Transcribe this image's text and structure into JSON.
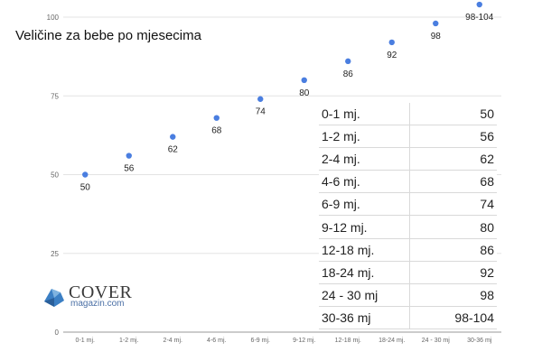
{
  "chart_data": {
    "type": "scatter",
    "title": "Veličine za bebe po mjesecima",
    "categories": [
      "0-1 mj.",
      "1-2 mj.",
      "2-4 mj.",
      "4-6 mj.",
      "6-9 mj.",
      "9-12 mj.",
      "12-18 mj.",
      "18-24 mj.",
      "24 - 30 mj",
      "30-36 mj"
    ],
    "values": [
      50,
      56,
      62,
      68,
      74,
      80,
      86,
      92,
      98,
      104
    ],
    "data_labels": [
      "50",
      "56",
      "62",
      "68",
      "74",
      "80",
      "86",
      "92",
      "98",
      "98-104"
    ],
    "ylim": [
      0,
      100
    ],
    "yticks": [
      0,
      25,
      50,
      75,
      100
    ],
    "xlabel": "",
    "ylabel": "",
    "grid": true,
    "point_color": "#4a7ee0"
  },
  "table": {
    "rows": [
      {
        "label": "0-1 mj.",
        "value": "50"
      },
      {
        "label": "1-2 mj.",
        "value": "56"
      },
      {
        "label": "2-4 mj.",
        "value": "62"
      },
      {
        "label": "4-6 mj.",
        "value": "68"
      },
      {
        "label": "6-9 mj.",
        "value": "74"
      },
      {
        "label": "9-12 mj.",
        "value": "80"
      },
      {
        "label": "12-18 mj.",
        "value": "86"
      },
      {
        "label": "18-24 mj.",
        "value": "92"
      },
      {
        "label": "24 - 30 mj",
        "value": "98"
      },
      {
        "label": "30-36 mj",
        "value": "98-104"
      }
    ]
  },
  "logo": {
    "name": "COVER",
    "sub": "magazin.com"
  }
}
